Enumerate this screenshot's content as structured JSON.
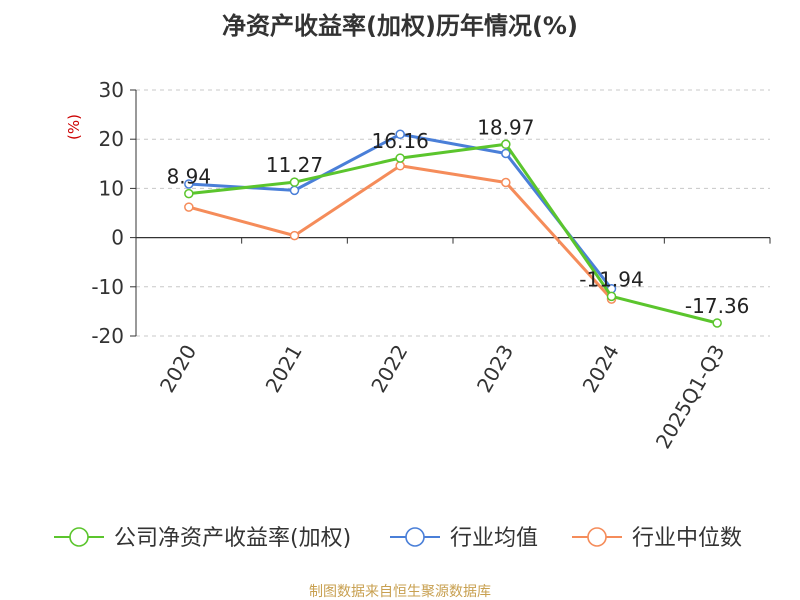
{
  "chart_data": {
    "type": "line",
    "title": "净资产收益率(加权)历年情况(%)",
    "ylabel": "(%)",
    "xlabel": "",
    "categories": [
      "2020",
      "2021",
      "2022",
      "2023",
      "2024",
      "2025Q1-Q3"
    ],
    "ylim": [
      -20,
      30
    ],
    "yticks": [
      30,
      20,
      10,
      0,
      -10,
      -20
    ],
    "grid": true,
    "legend_position": "bottom",
    "series": [
      {
        "name": "公司净资产收益率(加权)",
        "color": "#5bc52d",
        "values": [
          8.94,
          11.27,
          16.16,
          18.97,
          -11.94,
          -17.36
        ],
        "labels": [
          "8.94",
          "11.27",
          "16.16",
          "18.97",
          "-11.94",
          "-17.36"
        ]
      },
      {
        "name": "行业均值",
        "color": "#4a7fd8",
        "values": [
          10.9,
          9.6,
          21.0,
          17.1,
          -10.4,
          null
        ]
      },
      {
        "name": "行业中位数",
        "color": "#f58c5a",
        "values": [
          6.2,
          0.4,
          14.6,
          11.2,
          -12.5,
          null
        ]
      }
    ]
  },
  "source": "制图数据来自恒生聚源数据库"
}
